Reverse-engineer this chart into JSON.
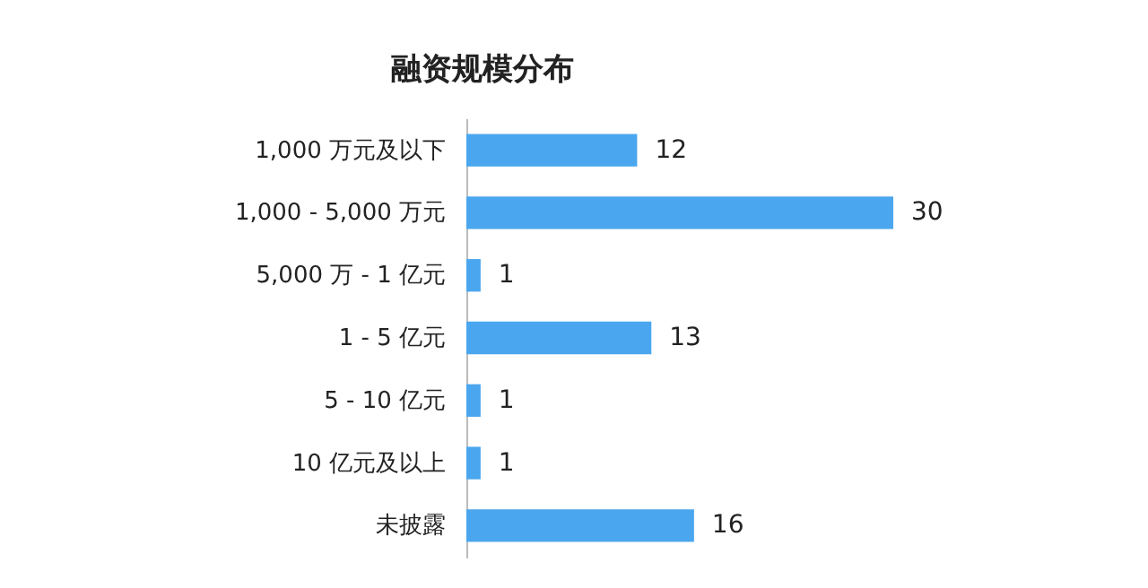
{
  "chart_data": {
    "type": "bar",
    "orientation": "horizontal",
    "title": "融资规模分布",
    "categories": [
      "1,000 万元及以下",
      "1,000 - 5,000 万元",
      "5,000 万 - 1 亿元",
      "1 - 5 亿元",
      "5 - 10 亿元",
      "10 亿元及以上",
      "未披露"
    ],
    "values": [
      12,
      30,
      1,
      13,
      1,
      1,
      16
    ],
    "color": "#4aa6ee",
    "data_labels": true
  }
}
